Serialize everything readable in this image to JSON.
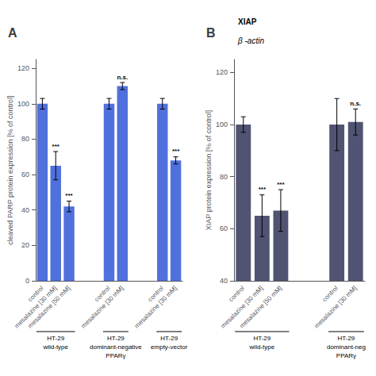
{
  "chart_data": [
    {
      "type": "bar",
      "title": "A",
      "ylabel": "cleaved PARP protein expression [% of control]",
      "ylim": [
        0,
        125
      ],
      "yticks": [
        0,
        20,
        40,
        60,
        80,
        100,
        120
      ],
      "grid": false,
      "groups": [
        {
          "label": [
            "HT-29",
            "wild-type"
          ],
          "categories": [
            "control",
            "mesalazine [30 mM]",
            "mesalazine [50 mM]"
          ],
          "values": [
            100,
            65,
            42
          ],
          "errors": [
            3,
            8,
            3
          ],
          "annotations": [
            null,
            "***",
            "***"
          ]
        },
        {
          "label": [
            "HT-29",
            "dominant-negative",
            "PPARγ"
          ],
          "categories": [
            "control",
            "mesalazine [30 mM]"
          ],
          "values": [
            100,
            110
          ],
          "errors": [
            3,
            2
          ],
          "annotations": [
            null,
            "n.s."
          ]
        },
        {
          "label": [
            "HT-29",
            "empty-vector"
          ],
          "categories": [
            "control",
            "mesalazine [30 mM]"
          ],
          "values": [
            100,
            68
          ],
          "errors": [
            3,
            2
          ],
          "annotations": [
            null,
            "***"
          ]
        }
      ]
    },
    {
      "type": "bar",
      "title": "B",
      "ylabel": "XIAP protein expression [% of control]",
      "ylim": [
        40,
        125
      ],
      "yticks": [
        40,
        60,
        80,
        100,
        120
      ],
      "grid": false,
      "annotations": [
        "XIAP",
        "β -actin"
      ],
      "groups": [
        {
          "label": [
            "HT-29",
            "wild-type"
          ],
          "categories": [
            "control",
            "mesalazine [30 mM]",
            "mesalazine [50 mM]"
          ],
          "values": [
            100,
            65,
            67
          ],
          "errors": [
            3,
            8,
            8
          ],
          "annotations": [
            null,
            "***",
            "***"
          ]
        },
        {
          "label": [
            "HT-29",
            "dominant-neg",
            "PPARγ"
          ],
          "categories": [
            "control",
            "mesalazine [30 mM]"
          ],
          "values": [
            100,
            101
          ],
          "errors": [
            10,
            5
          ],
          "annotations": [
            null,
            "n.s."
          ]
        }
      ]
    }
  ]
}
